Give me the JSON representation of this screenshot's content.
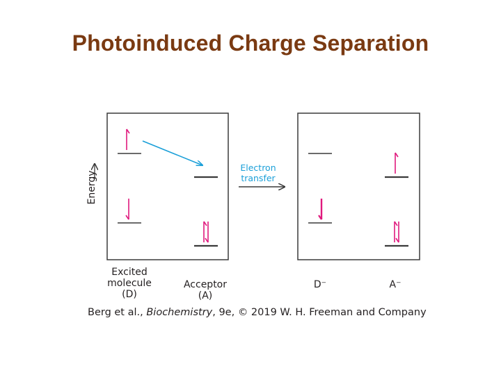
{
  "title": "Photoinduced Charge Separation",
  "energy_axis_label": "Energy",
  "electron_transfer": {
    "line1": "Electron",
    "line2": "transfer"
  },
  "labels": {
    "excited_line1": "Excited",
    "excited_line2": "molecule",
    "excited_line3": "(D)",
    "acceptor_line1": "Acceptor",
    "acceptor_line2": "(A)",
    "donor_ion": "D⁻",
    "acceptor_ion": "A⁻"
  },
  "caption": {
    "prefix": "Berg et al., ",
    "book": "Biochemistry",
    "suffix": ", 9e, © 2019 W. H. Freeman and Company"
  },
  "colors": {
    "title": "#7a3a12",
    "electron": "#e0197d",
    "transfer_arrow": "#1a9fd8",
    "frame": "#3a3a3a"
  }
}
